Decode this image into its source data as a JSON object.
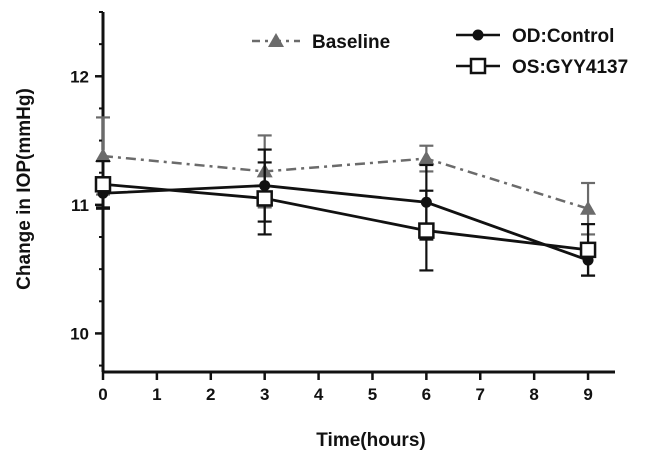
{
  "chart_data": {
    "type": "line",
    "title": "",
    "xlabel": "Time(hours)",
    "ylabel": "Change in IOP(mmHg)",
    "xlim": [
      0,
      9.5
    ],
    "ylim": [
      9.7,
      12.5
    ],
    "x_ticks": [
      0,
      1,
      2,
      3,
      4,
      5,
      6,
      7,
      8,
      9
    ],
    "y_ticks": [
      10,
      11,
      12
    ],
    "grid": false,
    "legend_placement": "top",
    "series": [
      {
        "name": "Baseline",
        "x": [
          0,
          3,
          6,
          9
        ],
        "values": [
          11.38,
          11.26,
          11.36,
          10.97
        ],
        "error": [
          0.3,
          0.28,
          0.1,
          0.2
        ],
        "marker": "triangle",
        "line_style": "dash-dot",
        "color": "#6b6b6b"
      },
      {
        "name": "OD:Control",
        "x": [
          0,
          3,
          6,
          9
        ],
        "values": [
          11.09,
          11.15,
          11.02,
          10.57
        ],
        "error": [
          0.12,
          0.28,
          0.29,
          0.12
        ],
        "marker": "circle",
        "line_style": "solid",
        "color": "#111111"
      },
      {
        "name": "OS:GYY4137",
        "x": [
          0,
          3,
          6,
          9
        ],
        "values": [
          11.16,
          11.05,
          10.8,
          10.65
        ],
        "error": [
          0.18,
          0.28,
          0.31,
          0.2
        ],
        "marker": "open-square",
        "line_style": "solid",
        "color": "#111111"
      }
    ]
  }
}
